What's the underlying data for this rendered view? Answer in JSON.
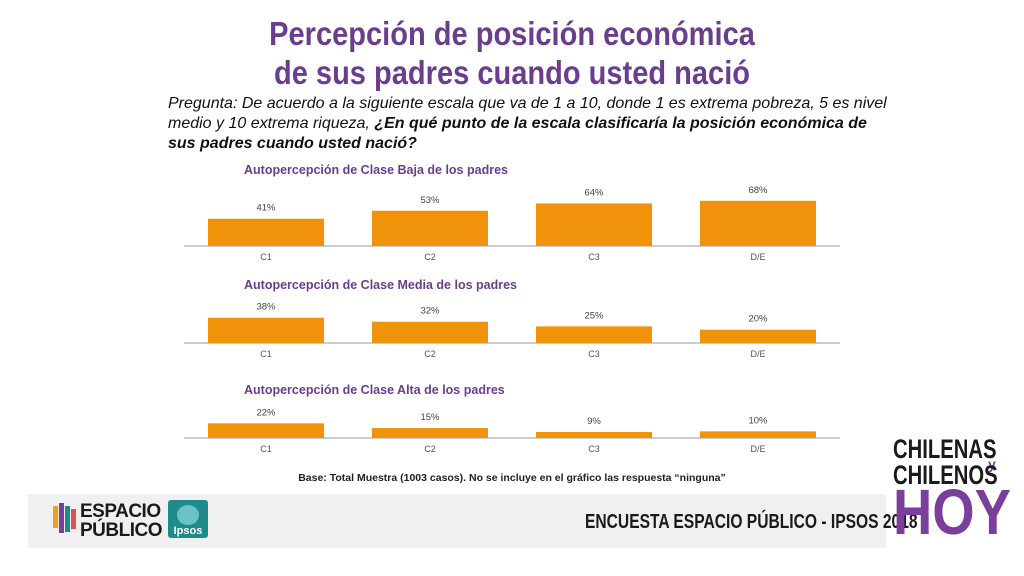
{
  "title_line1": "Percepción de posición económica",
  "title_line2": "de sus padres cuando usted nació",
  "question_normal": "Pregunta: De acuerdo a la siguiente escala que va de 1 a 10, donde 1 es extrema pobreza, 5 es nivel medio y 10 extrema riqueza, ",
  "question_bold": "¿En qué punto de la escala clasificaría la posición económica de sus padres cuando usted nació?",
  "base_note": "Base: Total Muestra (1003 casos). No se incluye en el gráfico las respuesta “ninguna”",
  "footer": {
    "logo_line1": "ESPACIO",
    "logo_line2": "PÚBLICO",
    "ipsos_label": "Ipsos",
    "caption": "ENCUESTA ESPACIO PÚBLICO - IPSOS 2018"
  },
  "brand": {
    "line1": "CHILENAS",
    "y": "y",
    "line2": "CHILENOS",
    "hoy": "HOY"
  },
  "colors": {
    "bar": "#f0920a",
    "title": "#6b3d8e",
    "axis": "#999999"
  },
  "chart_data": [
    {
      "type": "bar",
      "title": "Autopercepción de Clase Baja de los padres",
      "categories": [
        "C1",
        "C2",
        "C3",
        "D/E"
      ],
      "values": [
        41,
        53,
        64,
        68
      ],
      "labels": [
        "41%",
        "53%",
        "64%",
        "68%"
      ]
    },
    {
      "type": "bar",
      "title": "Autopercepción de Clase Media de los padres",
      "categories": [
        "C1",
        "C2",
        "C3",
        "D/E"
      ],
      "values": [
        38,
        32,
        25,
        20
      ],
      "labels": [
        "38%",
        "32%",
        "25%",
        "20%"
      ]
    },
    {
      "type": "bar",
      "title": "Autopercepción de Clase Alta de los padres",
      "categories": [
        "C1",
        "C2",
        "C3",
        "D/E"
      ],
      "values": [
        22,
        15,
        9,
        10
      ],
      "labels": [
        "22%",
        "15%",
        "9%",
        "10%"
      ]
    }
  ]
}
